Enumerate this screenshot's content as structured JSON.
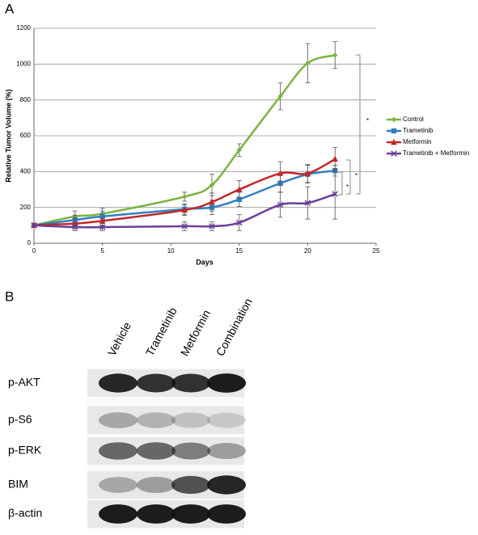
{
  "panel_labels": [
    "A",
    "B"
  ],
  "chart_data": {
    "type": "line",
    "x_label": "Days",
    "y_label": "Relative Tumor Volume (%)",
    "x": [
      0,
      3,
      5,
      11,
      13,
      15,
      18,
      20,
      22
    ],
    "series": [
      {
        "name": "Control",
        "color": "#7cb342",
        "marker": "diamond",
        "values": [
          100,
          150,
          165,
          260,
          325,
          520,
          820,
          1005,
          1050
        ],
        "errors": [
          0,
          30,
          30,
          25,
          60,
          35,
          75,
          110,
          75
        ]
      },
      {
        "name": "Trametinib",
        "color": "#2f7fc1",
        "marker": "square",
        "values": [
          100,
          130,
          150,
          190,
          200,
          245,
          335,
          385,
          405
        ],
        "errors": [
          0,
          25,
          30,
          30,
          40,
          40,
          50,
          50,
          30
        ]
      },
      {
        "name": "Metformin",
        "color": "#c0282a",
        "marker": "triangle",
        "values": [
          100,
          110,
          125,
          185,
          230,
          300,
          390,
          390,
          470
        ],
        "errors": [
          0,
          25,
          25,
          30,
          50,
          50,
          65,
          50,
          65
        ]
      },
      {
        "name": "Trametinib + Metformin",
        "color": "#6a3d9a",
        "marker": "cross",
        "values": [
          100,
          90,
          90,
          95,
          95,
          115,
          215,
          225,
          275
        ],
        "errors": [
          0,
          20,
          20,
          25,
          25,
          45,
          70,
          90,
          140
        ]
      }
    ],
    "xlim": [
      0,
      25
    ],
    "xticks": [
      0,
      5,
      10,
      15,
      20,
      25
    ],
    "ylim": [
      0,
      1200
    ],
    "yticks": [
      0,
      200,
      400,
      600,
      800,
      1000,
      1200
    ],
    "grid": true,
    "legend": "right",
    "annotations": [
      "*",
      "*",
      "*"
    ]
  },
  "blot": {
    "columns": [
      "Vehicle",
      "Trametinib",
      "Metformin",
      "Combination"
    ],
    "rows": [
      "p-AKT",
      "p-S6",
      "p-ERK",
      "BIM",
      "β-actin"
    ]
  }
}
